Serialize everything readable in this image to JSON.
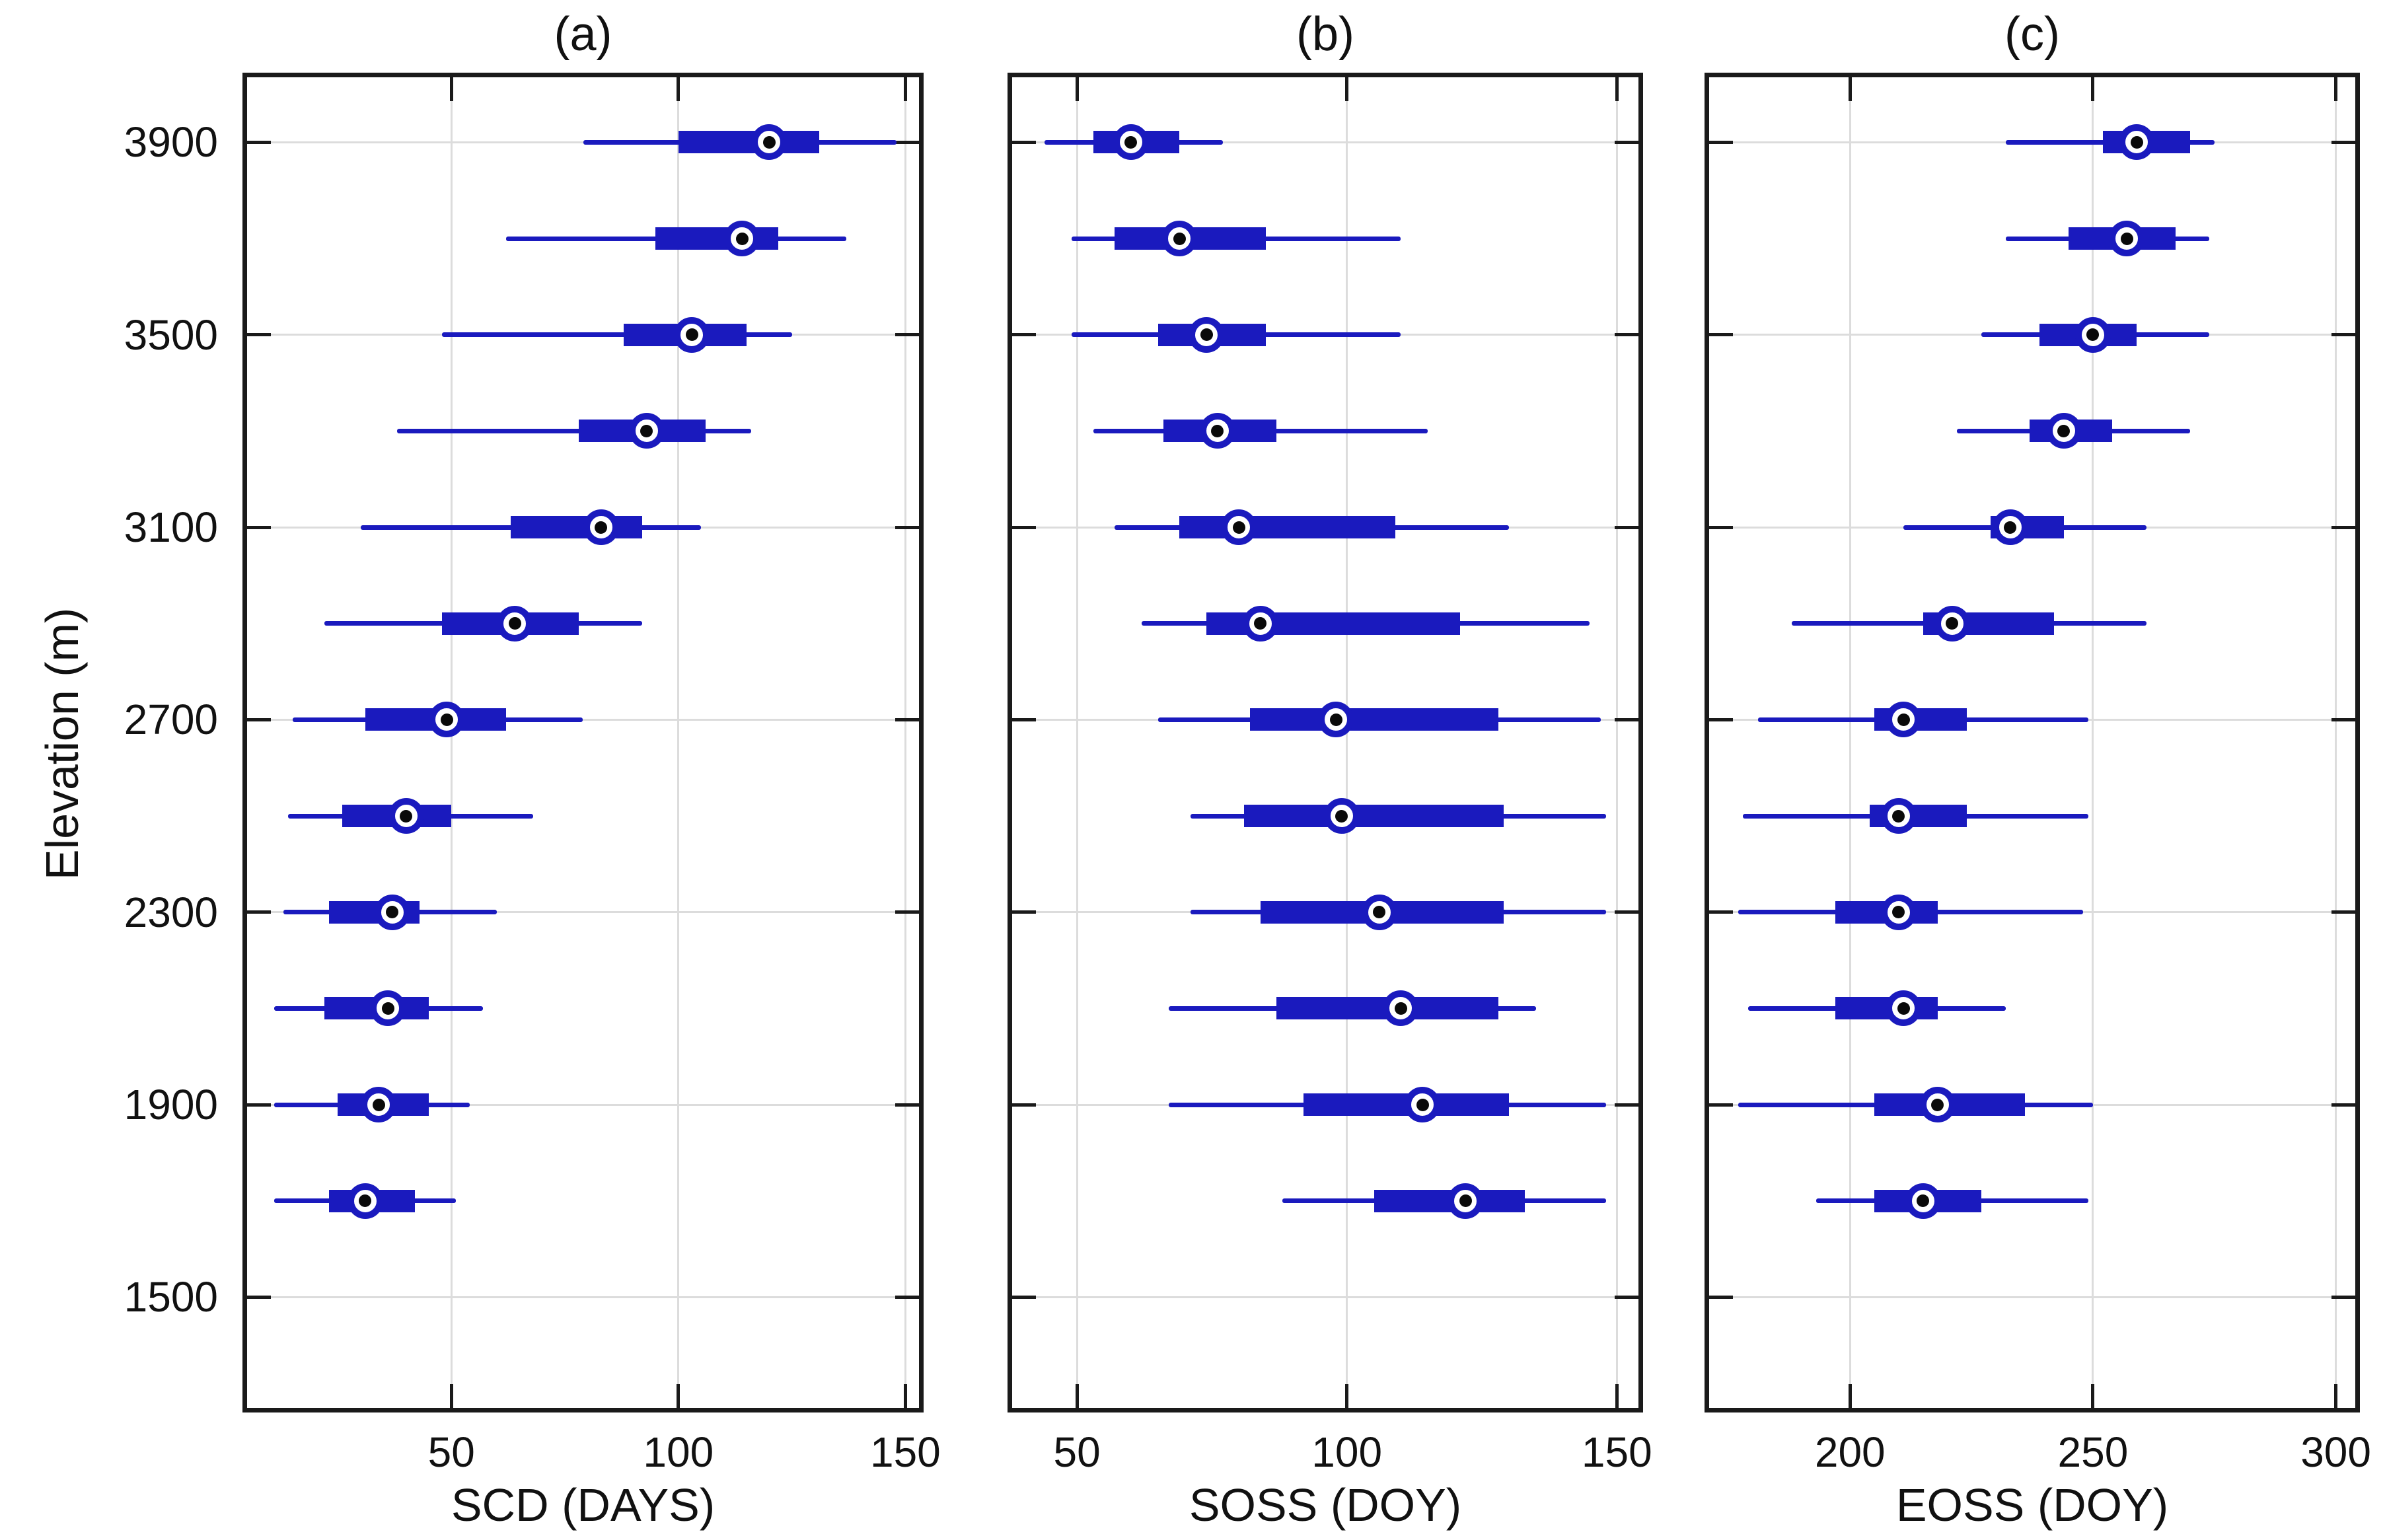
{
  "figure": {
    "ylabel": "Elevation (m)",
    "background": "#ffffff",
    "colors": {
      "box_blue": "#1a1abe",
      "frame": "#1a1a1a",
      "grid": "#dcdcdc",
      "median_ring": "#1a1abe",
      "median_fill": "#ffffff",
      "median_dot": "#0a0a0a"
    }
  },
  "chart_data": [
    {
      "type": "box",
      "orientation": "horizontal",
      "title": "(a)",
      "xlabel": "SCD (DAYS)",
      "ylabel": "Elevation (m)",
      "xlim": [
        5,
        153
      ],
      "xticks": [
        50,
        100,
        150
      ],
      "ylim": [
        1270,
        4035
      ],
      "yticks": [
        3900,
        3500,
        3100,
        2700,
        2300,
        1900,
        1500
      ],
      "grid": true,
      "rows": [
        {
          "elevation": 3900,
          "whisker_low": 79,
          "q1": 100,
          "median": 120,
          "q3": 131,
          "whisker_high": 148
        },
        {
          "elevation": 3700,
          "whisker_low": 62,
          "q1": 95,
          "median": 114,
          "q3": 122,
          "whisker_high": 137
        },
        {
          "elevation": 3500,
          "whisker_low": 48,
          "q1": 88,
          "median": 103,
          "q3": 115,
          "whisker_high": 125
        },
        {
          "elevation": 3300,
          "whisker_low": 38,
          "q1": 78,
          "median": 93,
          "q3": 106,
          "whisker_high": 116
        },
        {
          "elevation": 3100,
          "whisker_low": 30,
          "q1": 63,
          "median": 83,
          "q3": 92,
          "whisker_high": 105
        },
        {
          "elevation": 2900,
          "whisker_low": 22,
          "q1": 48,
          "median": 64,
          "q3": 78,
          "whisker_high": 92
        },
        {
          "elevation": 2700,
          "whisker_low": 15,
          "q1": 31,
          "median": 49,
          "q3": 62,
          "whisker_high": 79
        },
        {
          "elevation": 2500,
          "whisker_low": 14,
          "q1": 26,
          "median": 40,
          "q3": 50,
          "whisker_high": 68
        },
        {
          "elevation": 2300,
          "whisker_low": 13,
          "q1": 23,
          "median": 37,
          "q3": 43,
          "whisker_high": 60
        },
        {
          "elevation": 2100,
          "whisker_low": 11,
          "q1": 22,
          "median": 36,
          "q3": 45,
          "whisker_high": 57
        },
        {
          "elevation": 1900,
          "whisker_low": 11,
          "q1": 25,
          "median": 34,
          "q3": 45,
          "whisker_high": 54
        },
        {
          "elevation": 1700,
          "whisker_low": 11,
          "q1": 23,
          "median": 31,
          "q3": 42,
          "whisker_high": 51
        }
      ]
    },
    {
      "type": "box",
      "orientation": "horizontal",
      "title": "(b)",
      "xlabel": "SOSS (DOY)",
      "ylabel": "Elevation (m)",
      "xlim": [
        38,
        154
      ],
      "xticks": [
        50,
        100,
        150
      ],
      "ylim": [
        1270,
        4035
      ],
      "yticks": [
        3900,
        3500,
        3100,
        2700,
        2300,
        1900,
        1500
      ],
      "grid": true,
      "rows": [
        {
          "elevation": 3900,
          "whisker_low": 44,
          "q1": 53,
          "median": 60,
          "q3": 69,
          "whisker_high": 77
        },
        {
          "elevation": 3700,
          "whisker_low": 49,
          "q1": 57,
          "median": 69,
          "q3": 85,
          "whisker_high": 110
        },
        {
          "elevation": 3500,
          "whisker_low": 49,
          "q1": 65,
          "median": 74,
          "q3": 85,
          "whisker_high": 110
        },
        {
          "elevation": 3300,
          "whisker_low": 53,
          "q1": 66,
          "median": 76,
          "q3": 87,
          "whisker_high": 115
        },
        {
          "elevation": 3100,
          "whisker_low": 57,
          "q1": 69,
          "median": 80,
          "q3": 109,
          "whisker_high": 130
        },
        {
          "elevation": 2900,
          "whisker_low": 62,
          "q1": 74,
          "median": 84,
          "q3": 121,
          "whisker_high": 145
        },
        {
          "elevation": 2700,
          "whisker_low": 65,
          "q1": 82,
          "median": 98,
          "q3": 128,
          "whisker_high": 147
        },
        {
          "elevation": 2500,
          "whisker_low": 71,
          "q1": 81,
          "median": 99,
          "q3": 129,
          "whisker_high": 148
        },
        {
          "elevation": 2300,
          "whisker_low": 71,
          "q1": 84,
          "median": 106,
          "q3": 129,
          "whisker_high": 148
        },
        {
          "elevation": 2100,
          "whisker_low": 67,
          "q1": 87,
          "median": 110,
          "q3": 128,
          "whisker_high": 135
        },
        {
          "elevation": 1900,
          "whisker_low": 67,
          "q1": 92,
          "median": 114,
          "q3": 130,
          "whisker_high": 148
        },
        {
          "elevation": 1700,
          "whisker_low": 88,
          "q1": 105,
          "median": 122,
          "q3": 133,
          "whisker_high": 148
        }
      ]
    },
    {
      "type": "box",
      "orientation": "horizontal",
      "title": "(c)",
      "xlabel": "EOSS (DOY)",
      "ylabel": "Elevation (m)",
      "xlim": [
        171,
        304
      ],
      "xticks": [
        200,
        250,
        300
      ],
      "ylim": [
        1270,
        4035
      ],
      "yticks": [
        3900,
        3500,
        3100,
        2700,
        2300,
        1900,
        1500
      ],
      "grid": true,
      "rows": [
        {
          "elevation": 3900,
          "whisker_low": 232,
          "q1": 252,
          "median": 259,
          "q3": 270,
          "whisker_high": 275
        },
        {
          "elevation": 3700,
          "whisker_low": 232,
          "q1": 245,
          "median": 257,
          "q3": 267,
          "whisker_high": 274
        },
        {
          "elevation": 3500,
          "whisker_low": 227,
          "q1": 239,
          "median": 250,
          "q3": 259,
          "whisker_high": 274
        },
        {
          "elevation": 3300,
          "whisker_low": 222,
          "q1": 237,
          "median": 244,
          "q3": 254,
          "whisker_high": 270
        },
        {
          "elevation": 3100,
          "whisker_low": 211,
          "q1": 229,
          "median": 233,
          "q3": 244,
          "whisker_high": 261
        },
        {
          "elevation": 2900,
          "whisker_low": 188,
          "q1": 215,
          "median": 221,
          "q3": 242,
          "whisker_high": 261
        },
        {
          "elevation": 2700,
          "whisker_low": 181,
          "q1": 205,
          "median": 211,
          "q3": 224,
          "whisker_high": 249
        },
        {
          "elevation": 2500,
          "whisker_low": 178,
          "q1": 204,
          "median": 210,
          "q3": 224,
          "whisker_high": 249
        },
        {
          "elevation": 2300,
          "whisker_low": 177,
          "q1": 197,
          "median": 210,
          "q3": 218,
          "whisker_high": 248
        },
        {
          "elevation": 2100,
          "whisker_low": 179,
          "q1": 197,
          "median": 211,
          "q3": 218,
          "whisker_high": 232
        },
        {
          "elevation": 1900,
          "whisker_low": 177,
          "q1": 205,
          "median": 218,
          "q3": 236,
          "whisker_high": 250
        },
        {
          "elevation": 1700,
          "whisker_low": 193,
          "q1": 205,
          "median": 215,
          "q3": 227,
          "whisker_high": 249
        }
      ]
    }
  ]
}
